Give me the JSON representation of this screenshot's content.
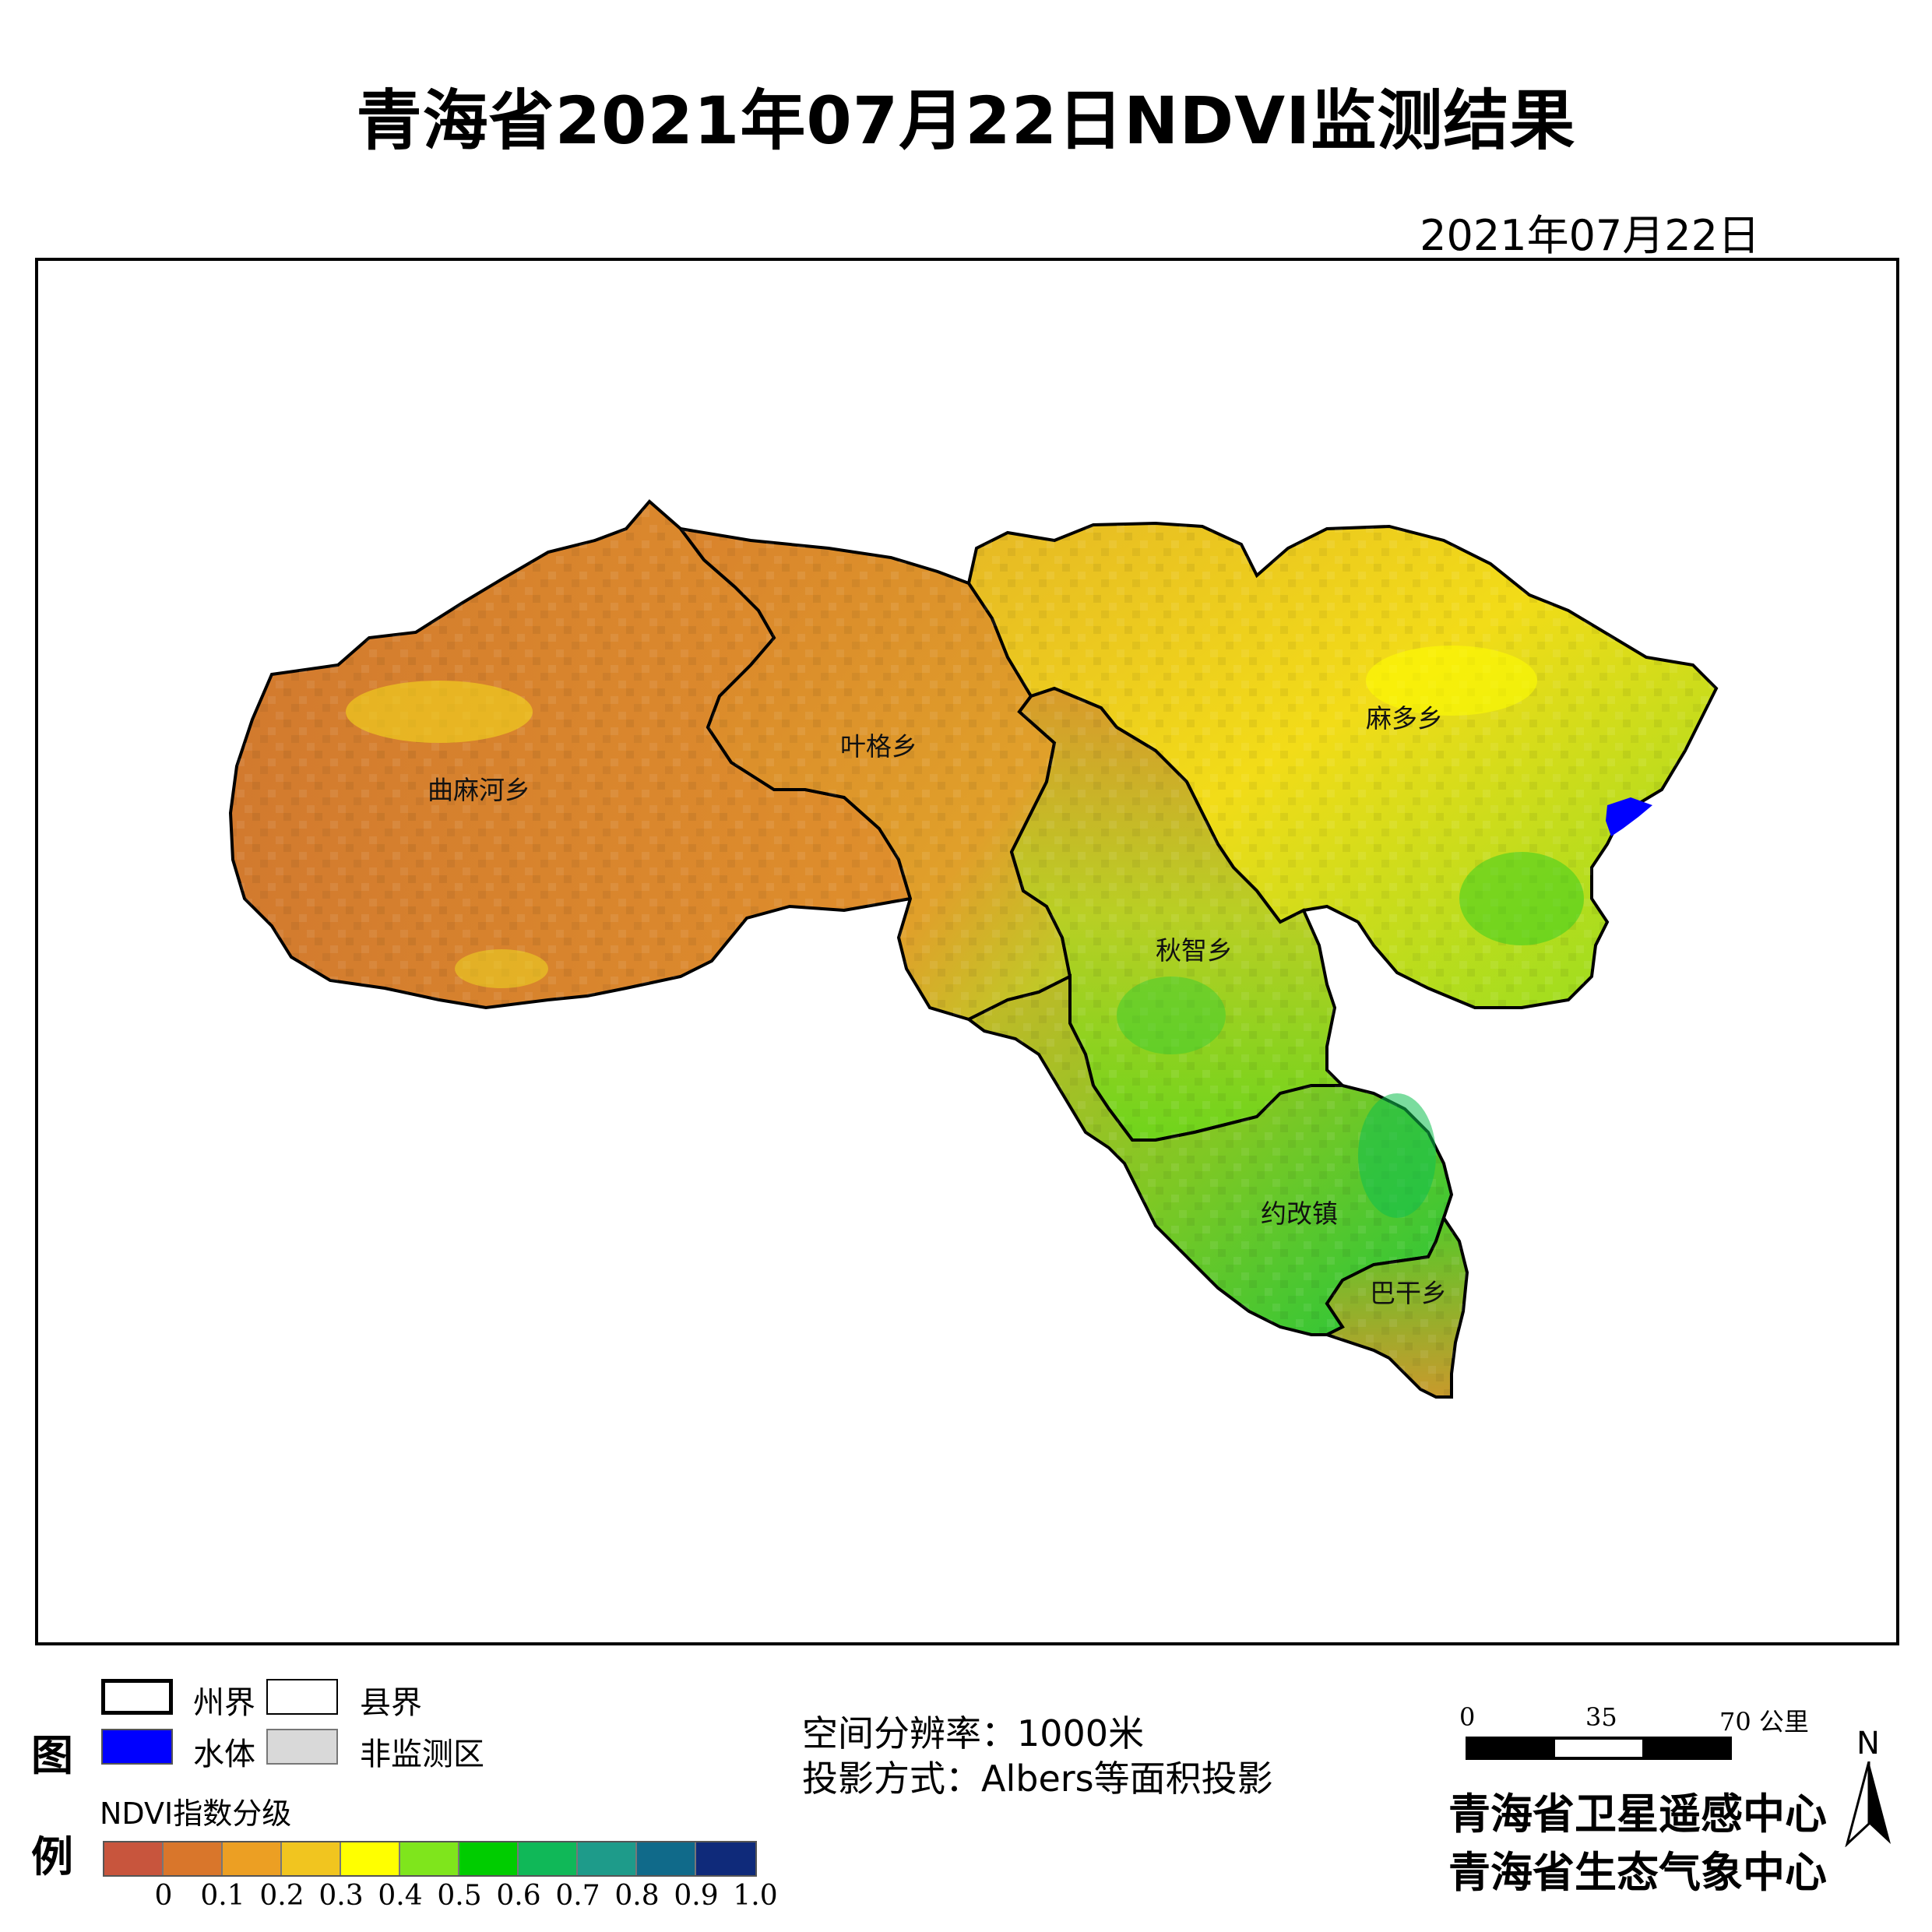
{
  "title": "青海省2021年07月22日NDVI监测结果",
  "date": "2021年07月22日",
  "regions": [
    {
      "name": "曲麻河乡"
    },
    {
      "name": "叶格乡"
    },
    {
      "name": "麻多乡"
    },
    {
      "name": "秋智乡"
    },
    {
      "name": "约改镇"
    },
    {
      "name": "巴干乡"
    }
  ],
  "legend": {
    "title_top": "图",
    "title_bottom": "例",
    "items": {
      "prefecture_boundary": "州界",
      "county_boundary": "县界",
      "water": "水体",
      "non_monitored": "非监测区"
    },
    "colors": {
      "water": "#0000ff",
      "non_monitored": "#d9d9d9"
    },
    "ndvi_title": "NDVI指数分级",
    "ndvi_colors": [
      "#c8553d",
      "#d9762b",
      "#ec9f23",
      "#f1c51f",
      "#ffff00",
      "#7fe51c",
      "#00cc00",
      "#10b858",
      "#1e9b8a",
      "#106a8a",
      "#0f2a7a"
    ],
    "ndvi_ticks": [
      "0",
      "0.1",
      "0.2",
      "0.3",
      "0.4",
      "0.5",
      "0.6",
      "0.7",
      "0.8",
      "0.9",
      "1.0"
    ]
  },
  "info": {
    "resolution": "空间分辨率：1000米",
    "projection": "投影方式：Albers等面积投影"
  },
  "scale": {
    "labels": [
      "0",
      "35",
      "70 公里"
    ]
  },
  "organizations": [
    "青海省卫星遥感中心",
    "青海省生态气象中心"
  ],
  "north": "N"
}
